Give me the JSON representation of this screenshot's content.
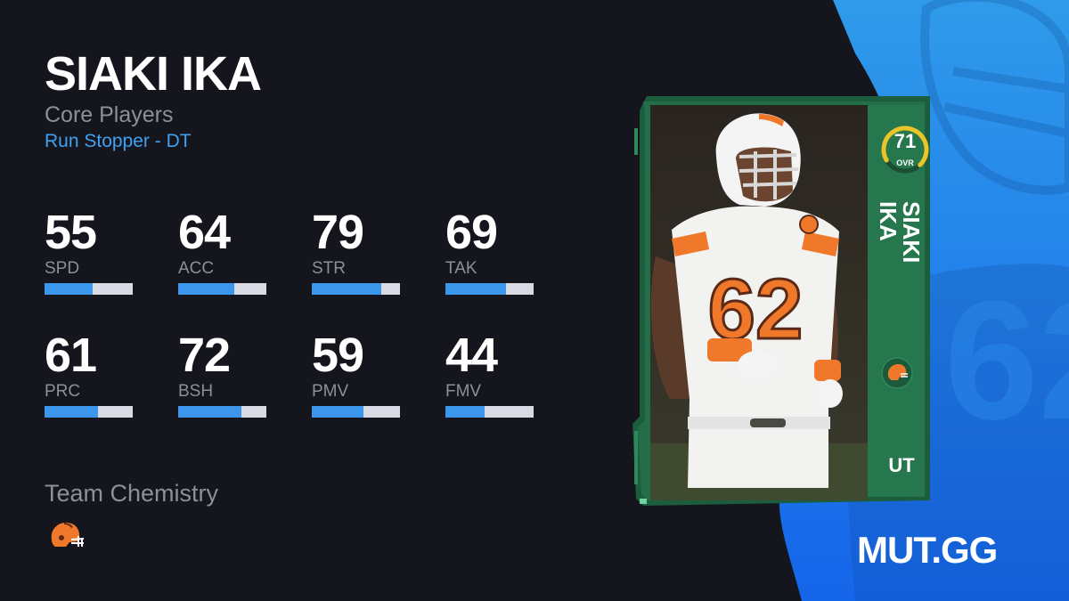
{
  "player": {
    "name": "SIAKI IKA",
    "program": "Core Players",
    "archetype": "Run Stopper - DT"
  },
  "stats": [
    {
      "label": "SPD",
      "value": "55",
      "fill": 55
    },
    {
      "label": "ACC",
      "value": "64",
      "fill": 64
    },
    {
      "label": "STR",
      "value": "79",
      "fill": 79
    },
    {
      "label": "TAK",
      "value": "69",
      "fill": 69
    },
    {
      "label": "PRC",
      "value": "61",
      "fill": 61
    },
    {
      "label": "BSH",
      "value": "72",
      "fill": 72
    },
    {
      "label": "PMV",
      "value": "59",
      "fill": 59
    },
    {
      "label": "FMV",
      "value": "44",
      "fill": 44
    }
  ],
  "chemistry": {
    "title": "Team Chemistry",
    "team_icon": "browns-helmet-icon"
  },
  "card": {
    "ovr": "71",
    "ovr_label": "OVR",
    "ovr_fill": 71,
    "first_name": "SIAKI",
    "last_name": "IKA",
    "position": "UT",
    "jersey_number": "62",
    "colors": {
      "card_green": "#1f6b45",
      "ovr_ring": "#e8c52a",
      "jersey_orange": "#f0782a",
      "helmet_brown": "#5b2a17"
    }
  },
  "brand": "MUT.GG",
  "colors": {
    "background": "#14151d",
    "accent_blue": "#3b96ec",
    "bar_track": "#d9dbe4",
    "muted_text": "#8d8f99",
    "archetype_blue": "#3fa1f0"
  }
}
